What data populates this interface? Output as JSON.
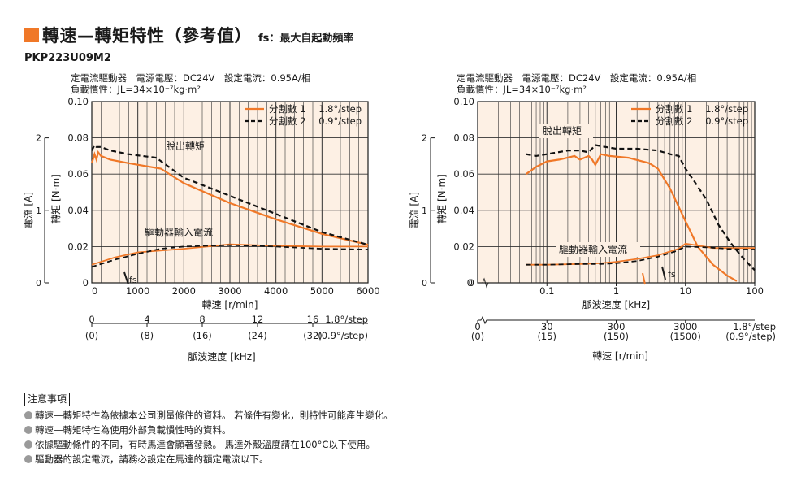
{
  "header": {
    "title": "轉速—轉矩特性（參考值）",
    "subtitle": "fs：最大自起動頻率",
    "model": "PKP223U09M2"
  },
  "colors": {
    "accent": "#f07828",
    "plot_background": "#fdf0e4",
    "series_1": "#f07828",
    "series_2": "#111111"
  },
  "chart_data": [
    {
      "type": "line",
      "info_line1": "定電流驅動器　電源電壓：DC24V　設定電流：0.95A/相",
      "info_line2": "負載慣性：JL=34×10⁻⁷kg·m²",
      "xlabel": "轉速 [r/min]",
      "xlabel2": "脈波速度 [kHz]",
      "ylabel": "轉矩 [N·m]",
      "ylabel2": "電流 [A]",
      "xlim": [
        0,
        6000
      ],
      "ylim": [
        0,
        0.1
      ],
      "ylim_current": [
        0,
        2.5
      ],
      "xscale": "linear",
      "grid": true,
      "legend_position": "top-right",
      "x_ticks": [
        "0",
        "1000",
        "2000",
        "3000",
        "4000",
        "5000",
        "6000"
      ],
      "y_ticks": [
        "0",
        "0.02",
        "0.04",
        "0.06",
        "0.08",
        "0.10"
      ],
      "current_ticks": [
        "0",
        "1",
        "2"
      ],
      "secondary_axis": {
        "values": [
          0,
          2000,
          4000,
          6000,
          8000,
          10000,
          12000
        ],
        "labels_18": [
          "0",
          "4",
          "8",
          "12",
          "16"
        ],
        "labels_09": [
          "(0)",
          "(8)",
          "(16)",
          "(24)",
          "(32)"
        ],
        "end_label_18": "1.8°/step",
        "end_label_09": "(0.9°/step)"
      },
      "annotations": {
        "pullout": "脫出轉矩",
        "driver_current": "驅動器輸入電流",
        "fs": "fs"
      },
      "series": [
        {
          "name": "分割數 1",
          "step_label": "1.8°/step",
          "style": "solid",
          "torque": {
            "x": [
              0,
              60,
              100,
              140,
              200,
              400,
              800,
              1500,
              2000,
              3000,
              4000,
              5000,
              6000
            ],
            "y": [
              0.066,
              0.071,
              0.068,
              0.072,
              0.07,
              0.068,
              0.066,
              0.063,
              0.055,
              0.044,
              0.035,
              0.027,
              0.021
            ]
          },
          "current": {
            "x": [
              0,
              500,
              1000,
              2000,
              3000,
              4000,
              5000,
              6000
            ],
            "y": [
              0.25,
              0.35,
              0.42,
              0.47,
              0.53,
              0.51,
              0.5,
              0.5
            ]
          }
        },
        {
          "name": "分割數 2",
          "step_label": "0.9°/step",
          "style": "dashed",
          "torque": {
            "x": [
              0,
              60,
              100,
              200,
              400,
              800,
              1400,
              2000,
              3000,
              4000,
              5000,
              6000
            ],
            "y": [
              0.073,
              0.076,
              0.075,
              0.075,
              0.073,
              0.071,
              0.069,
              0.058,
              0.048,
              0.038,
              0.028,
              0.021
            ]
          },
          "current": {
            "x": [
              0,
              500,
              1000,
              1500,
              2000,
              3000,
              4000,
              5000,
              6000
            ],
            "y": [
              0.22,
              0.32,
              0.4,
              0.47,
              0.5,
              0.52,
              0.5,
              0.47,
              0.46
            ]
          }
        }
      ]
    },
    {
      "type": "line",
      "info_line1": "定電流驅動器　電源電壓：DC24V　設定電流：0.95A/相",
      "info_line2": "負載慣性：JL=34×10⁻⁷kg·m²",
      "xlabel": "脈波速度 [kHz]",
      "xlabel2": "轉速 [r/min]",
      "ylabel": "轉矩 [N·m]",
      "ylabel2": "電流 [A]",
      "xlim": [
        0.01,
        100
      ],
      "ylim": [
        0,
        0.1
      ],
      "ylim_current": [
        0,
        2.5
      ],
      "xscale": "log",
      "grid": true,
      "legend_position": "top-right",
      "x_ticks": [
        "0.1",
        "1",
        "10",
        "100"
      ],
      "y_ticks": [
        "0",
        "0.02",
        "0.04",
        "0.06",
        "0.08",
        "0.10"
      ],
      "current_ticks": [
        "0",
        "1",
        "2"
      ],
      "secondary_axis": {
        "labels_18": [
          "0",
          "30",
          "300",
          "3000"
        ],
        "labels_09": [
          "(0)",
          "(15)",
          "(150)",
          "(1500)"
        ],
        "end_label_18": "1.8°/step",
        "end_label_09": "(0.9°/step)"
      },
      "annotations": {
        "pullout": "脫出轉矩",
        "driver_current": "驅動器輸入電流",
        "fs": "fs"
      },
      "series": [
        {
          "name": "分割數 1",
          "step_label": "1.8°/step",
          "style": "solid",
          "torque": {
            "x": [
              0.05,
              0.07,
              0.1,
              0.15,
              0.25,
              0.3,
              0.4,
              0.45,
              0.5,
              0.6,
              0.8,
              1.5,
              3.0,
              4.0,
              6.0,
              10.0,
              15.0,
              25.0,
              40.0,
              55.0
            ],
            "y": [
              0.06,
              0.064,
              0.067,
              0.068,
              0.07,
              0.068,
              0.07,
              0.068,
              0.065,
              0.071,
              0.07,
              0.069,
              0.066,
              0.063,
              0.052,
              0.034,
              0.02,
              0.01,
              0.004,
              0.001
            ]
          },
          "current": {
            "x": [
              0.05,
              0.1,
              0.3,
              0.6,
              1.0,
              2.0,
              4.0,
              8.0,
              10.0,
              14.0,
              25.0,
              60.0,
              100.0
            ],
            "y": [
              0.25,
              0.25,
              0.26,
              0.27,
              0.29,
              0.33,
              0.38,
              0.47,
              0.54,
              0.52,
              0.48,
              0.48,
              0.48
            ]
          }
        },
        {
          "name": "分割數 2",
          "step_label": "0.9°/step",
          "style": "dashed",
          "torque": {
            "x": [
              0.05,
              0.07,
              0.1,
              0.2,
              0.3,
              0.4,
              0.5,
              0.7,
              1.0,
              2.0,
              4.0,
              6.0,
              8.0,
              10.0,
              14.0,
              20.0,
              30.0,
              45.0,
              70.0,
              100.0
            ],
            "y": [
              0.071,
              0.07,
              0.071,
              0.073,
              0.073,
              0.072,
              0.076,
              0.075,
              0.074,
              0.074,
              0.073,
              0.071,
              0.07,
              0.063,
              0.055,
              0.046,
              0.032,
              0.022,
              0.013,
              0.007
            ]
          },
          "current": {
            "x": [
              0.05,
              0.1,
              0.3,
              0.6,
              1.0,
              2.0,
              4.0,
              7.0,
              10.0,
              20.0,
              40.0,
              70.0,
              100.0
            ],
            "y": [
              0.25,
              0.25,
              0.26,
              0.26,
              0.27,
              0.3,
              0.36,
              0.43,
              0.5,
              0.49,
              0.47,
              0.46,
              0.46
            ]
          }
        }
      ]
    }
  ],
  "notes": {
    "heading": "注意事項",
    "items": [
      "轉速—轉矩特性為依據本公司測量條件的資料。 若條件有變化，則特性可能產生變化。",
      "轉速—轉矩特性為使用外部負載慣性時的資料。",
      "依據驅動條件的不同，有時馬達會顯著發熱。 馬達外殼溫度請在100°C以下使用。",
      "驅動器的設定電流，請務必設定在馬達的額定電流以下。"
    ]
  }
}
